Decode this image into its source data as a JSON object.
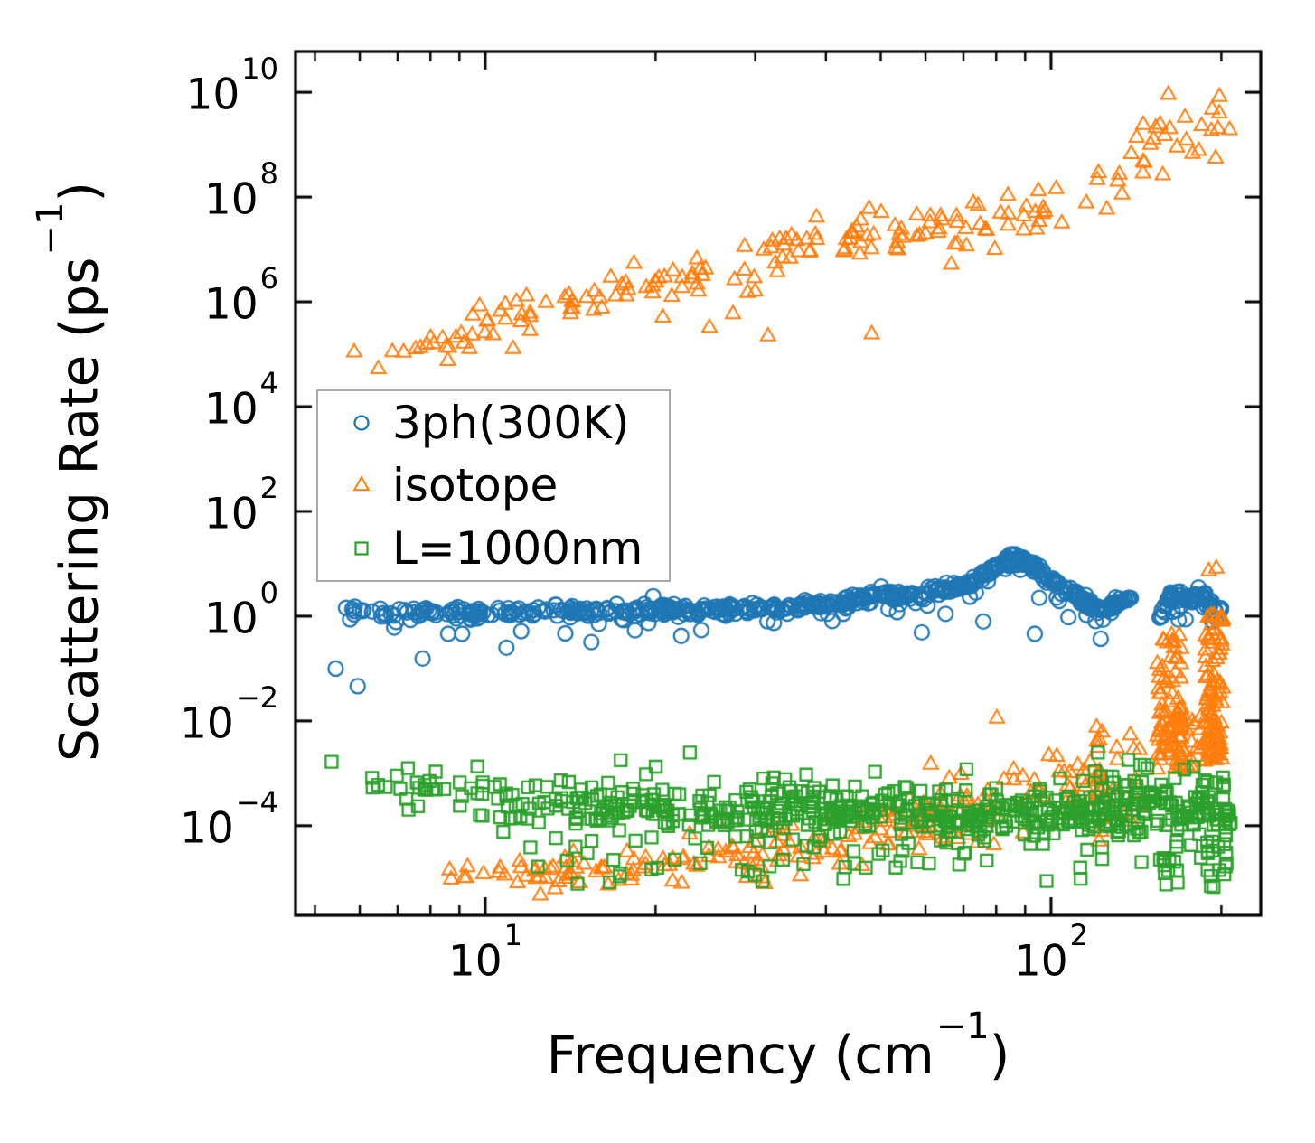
{
  "chart_data": {
    "type": "scatter",
    "title": "",
    "xlabel": {
      "pre": "Frequency (cm",
      "sup": "−1",
      "post": ")"
    },
    "ylabel": {
      "pre": "Scattering Rate (ps",
      "sup": "−1",
      "post": ")"
    },
    "axes": {
      "x": {
        "scale": "log",
        "min": 4.62,
        "max": 234.8,
        "major_ticks": [
          {
            "value": 10,
            "exp": 1
          },
          {
            "value": 100,
            "exp": 2
          }
        ],
        "minor_ticks": [
          5,
          6,
          7,
          8,
          9,
          20,
          30,
          40,
          50,
          60,
          70,
          80,
          90,
          200
        ],
        "grid": false
      },
      "y": {
        "scale": "log",
        "min": 1.95e-06,
        "max": 60000000000.0,
        "major_ticks": [
          {
            "exp": 10
          },
          {
            "exp": 8
          },
          {
            "exp": 6
          },
          {
            "exp": 4
          },
          {
            "exp": 2
          },
          {
            "exp": 0
          },
          {
            "exp": -2
          },
          {
            "exp": -4
          }
        ],
        "minor_ticks": [],
        "grid": false
      }
    },
    "legend": {
      "position": "upper-left-inside",
      "border_color": "#aaaaaa"
    },
    "render_seed": 12345,
    "series": [
      {
        "name": "3ph(300K)",
        "marker": "circle",
        "color": "#1f77b4",
        "points": [
          [
            5.44,
            0.1
          ],
          [
            5.95,
            0.046
          ],
          [
            7.75,
            0.155
          ],
          [
            8.6,
            0.46
          ],
          [
            9.1,
            0.46
          ],
          [
            10.9,
            0.25
          ],
          [
            15.4,
            0.32
          ],
          [
            22.2,
            0.42
          ],
          [
            59.1,
            0.49
          ],
          [
            75.9,
            0.79
          ],
          [
            93.6,
            0.46
          ]
        ],
        "bands": [
          {
            "type": "trend",
            "count": 640,
            "lx": [
              0.746,
              2.303
            ],
            "skew": 0.7,
            "gaps": [
              [
                2.146,
                2.192
              ]
            ],
            "anchors": [
              [
                0.746,
                0.07
              ],
              [
                0.9,
                0.06
              ],
              [
                1.0,
                0.05
              ],
              [
                1.1,
                0.08
              ],
              [
                1.2,
                0.1
              ],
              [
                1.32,
                0.12
              ],
              [
                1.45,
                0.14
              ],
              [
                1.58,
                0.2
              ],
              [
                1.66,
                0.32
              ],
              [
                1.7,
                0.42
              ],
              [
                1.74,
                0.36
              ],
              [
                1.79,
                0.45
              ],
              [
                1.84,
                0.55
              ],
              [
                1.9,
                0.9
              ],
              [
                1.935,
                1.12
              ],
              [
                1.97,
                0.92
              ],
              [
                2.0,
                0.68
              ],
              [
                2.02,
                0.52
              ],
              [
                2.045,
                0.38
              ],
              [
                2.07,
                0.22
              ],
              [
                2.09,
                0.1
              ],
              [
                2.11,
                0.17
              ],
              [
                2.13,
                0.32
              ],
              [
                2.146,
                0.36
              ],
              [
                2.192,
                -0.02
              ],
              [
                2.205,
                0.28
              ],
              [
                2.22,
                0.48
              ],
              [
                2.235,
                0.35
              ],
              [
                2.25,
                0.3
              ],
              [
                2.265,
                0.42
              ],
              [
                2.28,
                0.28
              ],
              [
                2.292,
                0.05
              ],
              [
                2.303,
                0.18
              ]
            ],
            "sigma": 0.055,
            "mixes": [
              {
                "p": 0.1,
                "mu": -0.22,
                "s": 0.16
              }
            ],
            "clamp": [
              -1.5,
              1.3
            ]
          }
        ]
      },
      {
        "name": "isotope",
        "marker": "triangle",
        "color": "#ff7f0e",
        "points": [
          [
            11.2,
            126000.0
          ],
          [
            12.0,
            280000.0
          ],
          [
            20.6,
            500000.0
          ],
          [
            24.9,
            320000.0
          ],
          [
            27.4,
            580000.0
          ],
          [
            31.6,
            220000.0
          ],
          [
            48.2,
            240000.0
          ],
          [
            80.2,
            0.0112
          ],
          [
            129,
            0.0005
          ],
          [
            133,
            0.00018
          ],
          [
            136,
            0.00032
          ],
          [
            137.6,
            0.00014
          ],
          [
            138.5,
            0.00012
          ],
          [
            190,
            7.2
          ],
          [
            196,
            8.1
          ]
        ],
        "bands": [
          {
            "type": "trend",
            "count": 195,
            "lx": [
              0.748,
              2.318
            ],
            "skew": 0.85,
            "anchors": [
              [
                0.748,
                4.83
              ],
              [
                0.81,
                4.72
              ],
              [
                0.95,
                5.35
              ],
              [
                1.05,
                5.75
              ],
              [
                1.12,
                6.0
              ],
              [
                1.2,
                6.1
              ],
              [
                1.3,
                6.3
              ],
              [
                1.4,
                6.55
              ],
              [
                1.5,
                6.8
              ],
              [
                1.58,
                7.1
              ],
              [
                1.66,
                7.25
              ],
              [
                1.72,
                7.15
              ],
              [
                1.78,
                7.4
              ],
              [
                1.84,
                7.3
              ],
              [
                1.9,
                7.5
              ],
              [
                1.96,
                7.55
              ],
              [
                2.01,
                7.8
              ],
              [
                2.06,
                8.25
              ],
              [
                2.1,
                8.05
              ],
              [
                2.14,
                8.45
              ],
              [
                2.18,
                9.25
              ],
              [
                2.22,
                8.95
              ],
              [
                2.26,
                9.2
              ],
              [
                2.3,
                9.55
              ],
              [
                2.318,
                9.6
              ]
            ],
            "sigma": 0.14,
            "sigma_end": 0.36,
            "clamp": [
              4.4,
              10.05
            ]
          },
          {
            "type": "trend",
            "count": 225,
            "lx": [
              0.93,
              2.16
            ],
            "skew": 0.8,
            "anchors": [
              [
                0.93,
                -4.92
              ],
              [
                1.0,
                -5.0
              ],
              [
                1.06,
                -4.9
              ],
              [
                1.1,
                -4.95
              ],
              [
                1.16,
                -4.75
              ],
              [
                1.22,
                -4.85
              ],
              [
                1.3,
                -4.75
              ],
              [
                1.4,
                -4.65
              ],
              [
                1.49,
                -4.6
              ],
              [
                1.58,
                -4.35
              ],
              [
                1.66,
                -4.1
              ],
              [
                1.74,
                -3.9
              ],
              [
                1.82,
                -3.7
              ],
              [
                1.9,
                -3.45
              ],
              [
                1.96,
                -3.3
              ],
              [
                2.0,
                -3.2
              ],
              [
                2.04,
                -3.35
              ],
              [
                2.08,
                -3.1
              ],
              [
                2.12,
                -2.95
              ],
              [
                2.16,
                -2.7
              ]
            ],
            "sigma": 0.12,
            "sigma_end": 0.45,
            "clamp": [
              -5.45,
              -1.9
            ]
          },
          {
            "type": "uniform",
            "count": 85,
            "lx": [
              2.187,
              2.232
            ],
            "ly": [
              -2.95,
              -0.36
            ],
            "pow": 1.35
          },
          {
            "type": "uniform",
            "count": 100,
            "lx": [
              2.272,
              2.304
            ],
            "ly": [
              -2.75,
              0.05
            ],
            "pow": 1.35
          },
          {
            "type": "uniform",
            "count": 28,
            "lx": [
              2.225,
              2.275
            ],
            "ly": [
              -2.9,
              -1.9
            ],
            "pow": 1
          },
          {
            "type": "uniform",
            "count": 13,
            "lx": [
              2.08,
              2.094
            ],
            "ly": [
              -4.3,
              -2.05
            ],
            "pow": 1
          }
        ]
      },
      {
        "name": "L=1000nm",
        "marker": "square",
        "color": "#2ca02c",
        "points": [
          [
            5.35,
            0.00166
          ],
          [
            7.3,
            0.00126
          ],
          [
            23,
            0.0025
          ],
          [
            121,
            0.0025
          ],
          [
            137,
            0.0018
          ],
          [
            148,
            0.00126
          ]
        ],
        "bands": [
          {
            "type": "trend",
            "count": 640,
            "lx": [
              0.728,
              2.318
            ],
            "skew": 0.6,
            "anchors": [
              [
                0.728,
                -3.1
              ],
              [
                0.78,
                -3.3
              ],
              [
                0.85,
                -3.25
              ],
              [
                0.95,
                -3.45
              ],
              [
                1.05,
                -3.5
              ],
              [
                1.15,
                -3.55
              ],
              [
                1.25,
                -3.6
              ],
              [
                1.35,
                -3.65
              ],
              [
                1.45,
                -3.68
              ],
              [
                1.55,
                -3.7
              ],
              [
                1.65,
                -3.72
              ],
              [
                1.75,
                -3.75
              ],
              [
                1.85,
                -3.78
              ],
              [
                1.95,
                -3.8
              ],
              [
                2.05,
                -3.75
              ],
              [
                2.1,
                -3.68
              ],
              [
                2.15,
                -3.55
              ],
              [
                2.19,
                -3.45
              ],
              [
                2.215,
                -3.85
              ],
              [
                2.24,
                -3.7
              ],
              [
                2.27,
                -3.55
              ],
              [
                2.29,
                -3.7
              ],
              [
                2.318,
                -3.85
              ]
            ],
            "sigma": 0.22,
            "mixes": [
              {
                "p": 0.13,
                "mu": -0.55,
                "s": 0.4
              },
              {
                "p": 0.08,
                "mu": 0.5,
                "s": 0.22
              }
            ],
            "clamp": [
              -5.3,
              -2.55
            ]
          },
          {
            "type": "uniform",
            "count": 13,
            "lx": [
              2.19,
              2.225
            ],
            "ly": [
              -5.15,
              -4.25
            ],
            "pow": 1
          },
          {
            "type": "uniform",
            "count": 15,
            "lx": [
              2.268,
              2.315
            ],
            "ly": [
              -5.2,
              -4.25
            ],
            "pow": 1
          },
          {
            "type": "uniform",
            "count": 20,
            "lx": [
              1.05,
              2.1
            ],
            "ly": [
              -5.1,
              -4.4
            ],
            "pow": 1
          }
        ]
      }
    ]
  }
}
